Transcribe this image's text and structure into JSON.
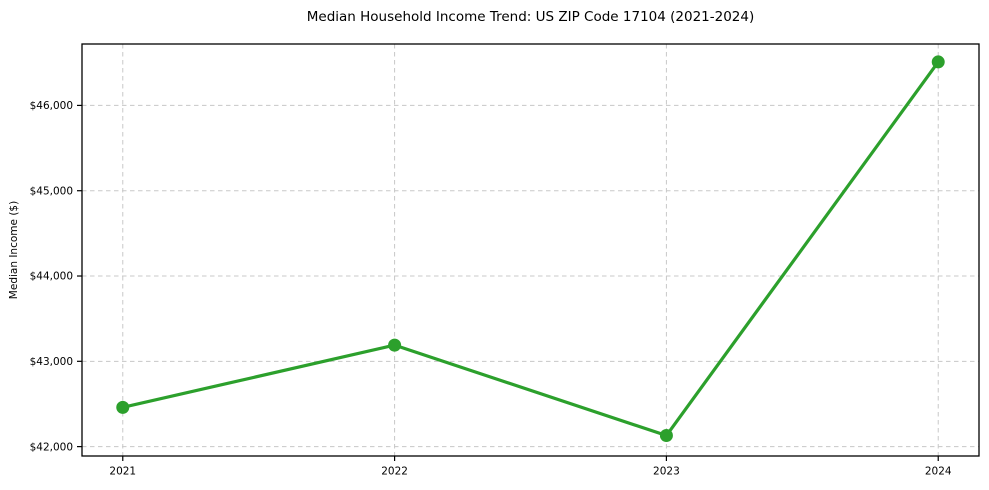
{
  "chart_data": {
    "type": "line",
    "title": "Median Household Income Trend: US ZIP Code 17104 (2021-2024)",
    "xlabel": "",
    "ylabel": "Median Income ($)",
    "categories": [
      "2021",
      "2022",
      "2023",
      "2024"
    ],
    "x_values": [
      2021,
      2022,
      2023,
      2024
    ],
    "values": [
      42460,
      43190,
      42130,
      46510
    ],
    "y_ticks": [
      42000,
      43000,
      44000,
      45000,
      46000
    ],
    "y_tick_labels": [
      "$42,000",
      "$43,000",
      "$44,000",
      "$45,000",
      "$46,000"
    ],
    "xlim": [
      2020.85,
      2024.15
    ],
    "ylim": [
      41890,
      46720
    ],
    "grid": true,
    "grid_style": "dashed",
    "legend": "none",
    "marker": "circle",
    "colors": {
      "line": "#2ca02c",
      "marker": "#2ca02c",
      "grid": "#c8c8c8",
      "axis": "#000000",
      "text": "#000000",
      "background": "#ffffff"
    }
  }
}
